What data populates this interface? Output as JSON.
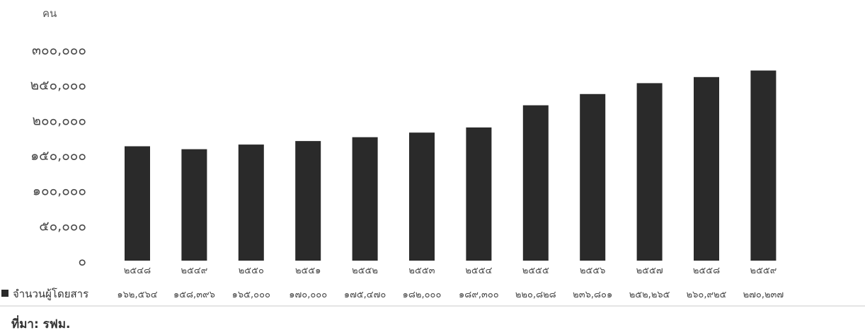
{
  "chart_data": {
    "type": "bar",
    "unit_label": "คน",
    "categories": [
      "๒๕๔๘",
      "๒๕๔๙",
      "๒๕๕๐",
      "๒๕๕๑",
      "๒๕๕๒",
      "๒๕๕๓",
      "๒๕๕๔",
      "๒๕๕๕",
      "๒๕๕๖",
      "๒๕๕๗",
      "๒๕๕๘",
      "๒๕๕๙"
    ],
    "series": [
      {
        "name": "จำนวนผู้โดยสาร",
        "values": [
          162564,
          158396,
          165000,
          170000,
          175470,
          182000,
          189300,
          220828,
          236801,
          252265,
          260925,
          270237
        ],
        "value_labels": [
          "๑๖๒,๕๖๔",
          "๑๕๘,๓๙๖",
          "๑๖๕,๐๐๐",
          "๑๗๐,๐๐๐",
          "๑๗๕,๔๗๐",
          "๑๘๒,๐๐๐",
          "๑๘๙,๓๐๐",
          "๒๒๐,๘๒๘",
          "๒๓๖,๘๐๑",
          "๒๕๒,๒๖๕",
          "๒๖๐,๙๒๕",
          "๒๗๐,๒๓๗"
        ]
      }
    ],
    "ylim": [
      0,
      300000
    ],
    "yticks": [
      0,
      50000,
      100000,
      150000,
      200000,
      250000,
      300000
    ],
    "ytick_labels": [
      "๐",
      "๕๐,๐๐๐",
      "๑๐๐,๐๐๐",
      "๑๕๐,๐๐๐",
      "๒๐๐,๐๐๐",
      "๒๕๐,๐๐๐",
      "๓๐๐,๐๐๐"
    ],
    "grid": false,
    "legend": "bottom-left",
    "bar_color": "#2a2a2a"
  },
  "source": "ที่มา: รฟม."
}
